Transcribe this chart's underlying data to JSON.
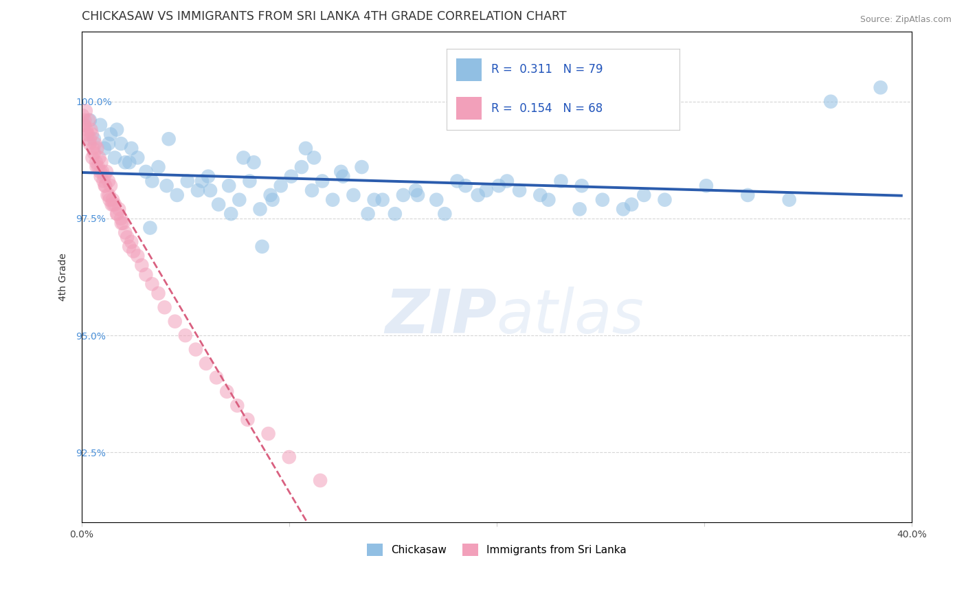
{
  "title": "CHICKASAW VS IMMIGRANTS FROM SRI LANKA 4TH GRADE CORRELATION CHART",
  "source_text": "Source: ZipAtlas.com",
  "ylabel": "4th Grade",
  "xlim": [
    0.0,
    40.0
  ],
  "ylim": [
    91.0,
    101.5
  ],
  "yticks": [
    92.5,
    95.0,
    97.5,
    100.0
  ],
  "ytick_labels": [
    "92.5%",
    "95.0%",
    "97.5%",
    "100.0%"
  ],
  "xticks": [
    0.0,
    10.0,
    20.0,
    30.0,
    40.0
  ],
  "xtick_labels": [
    "0.0%",
    "",
    "",
    "",
    "40.0%"
  ],
  "blue_color": "#91bfe3",
  "pink_color": "#f2a0ba",
  "blue_line_color": "#2b5cad",
  "pink_line_color": "#d96080",
  "background_color": "#ffffff",
  "grid_color": "#cccccc",
  "blue_scatter_x": [
    0.4,
    0.6,
    0.9,
    1.1,
    1.4,
    1.6,
    1.9,
    2.1,
    2.4,
    2.7,
    3.1,
    3.4,
    3.7,
    4.1,
    4.6,
    5.1,
    5.6,
    6.1,
    6.6,
    7.1,
    7.6,
    8.1,
    8.6,
    9.1,
    9.6,
    10.1,
    10.6,
    11.1,
    11.6,
    12.1,
    12.6,
    13.1,
    14.1,
    15.1,
    16.1,
    17.1,
    18.1,
    19.1,
    20.1,
    21.1,
    22.1,
    23.1,
    24.1,
    25.1,
    26.1,
    27.1,
    28.1,
    30.1,
    32.1,
    34.1,
    36.1,
    38.5,
    1.3,
    1.7,
    2.3,
    3.3,
    4.2,
    5.8,
    6.2,
    7.2,
    7.8,
    8.3,
    8.7,
    9.2,
    10.8,
    11.2,
    12.5,
    13.5,
    13.8,
    14.5,
    15.5,
    16.2,
    17.5,
    18.5,
    19.5,
    20.5,
    22.5,
    24.0,
    26.5
  ],
  "blue_scatter_y": [
    99.6,
    99.2,
    99.5,
    99.0,
    99.3,
    98.8,
    99.1,
    98.7,
    99.0,
    98.8,
    98.5,
    98.3,
    98.6,
    98.2,
    98.0,
    98.3,
    98.1,
    98.4,
    97.8,
    98.2,
    97.9,
    98.3,
    97.7,
    98.0,
    98.2,
    98.4,
    98.6,
    98.1,
    98.3,
    97.9,
    98.4,
    98.0,
    97.9,
    97.6,
    98.1,
    97.9,
    98.3,
    98.0,
    98.2,
    98.1,
    98.0,
    98.3,
    98.2,
    97.9,
    97.7,
    98.0,
    97.9,
    98.2,
    98.0,
    97.9,
    100.0,
    100.3,
    99.1,
    99.4,
    98.7,
    97.3,
    99.2,
    98.3,
    98.1,
    97.6,
    98.8,
    98.7,
    96.9,
    97.9,
    99.0,
    98.8,
    98.5,
    98.6,
    97.6,
    97.9,
    98.0,
    98.0,
    97.6,
    98.2,
    98.1,
    98.3,
    97.9,
    97.7,
    97.8
  ],
  "pink_scatter_x": [
    0.05,
    0.1,
    0.15,
    0.2,
    0.25,
    0.3,
    0.35,
    0.4,
    0.45,
    0.5,
    0.55,
    0.6,
    0.65,
    0.7,
    0.75,
    0.8,
    0.85,
    0.9,
    0.95,
    1.0,
    1.05,
    1.1,
    1.15,
    1.2,
    1.25,
    1.3,
    1.35,
    1.4,
    1.45,
    1.5,
    1.6,
    1.7,
    1.8,
    1.9,
    2.0,
    2.1,
    2.2,
    2.3,
    2.4,
    2.5,
    2.7,
    2.9,
    3.1,
    3.4,
    3.7,
    4.0,
    4.5,
    5.0,
    5.5,
    6.0,
    6.5,
    7.0,
    7.5,
    8.0,
    9.0,
    10.0,
    11.5,
    0.12,
    0.22,
    0.38,
    0.52,
    0.72,
    0.92,
    1.12,
    1.32,
    1.52,
    1.72,
    1.92
  ],
  "pink_scatter_y": [
    99.7,
    99.5,
    99.6,
    99.8,
    99.4,
    99.3,
    99.6,
    99.2,
    99.4,
    99.3,
    99.0,
    98.9,
    99.1,
    98.7,
    99.0,
    98.6,
    98.8,
    98.5,
    98.7,
    98.5,
    98.3,
    98.4,
    98.2,
    98.5,
    98.0,
    98.3,
    97.9,
    98.2,
    97.8,
    97.9,
    97.8,
    97.6,
    97.7,
    97.5,
    97.4,
    97.2,
    97.1,
    96.9,
    97.0,
    96.8,
    96.7,
    96.5,
    96.3,
    96.1,
    95.9,
    95.6,
    95.3,
    95.0,
    94.7,
    94.4,
    94.1,
    93.8,
    93.5,
    93.2,
    92.9,
    92.4,
    91.9,
    99.5,
    99.3,
    99.1,
    98.8,
    98.6,
    98.4,
    98.2,
    98.0,
    97.8,
    97.6,
    97.4
  ]
}
